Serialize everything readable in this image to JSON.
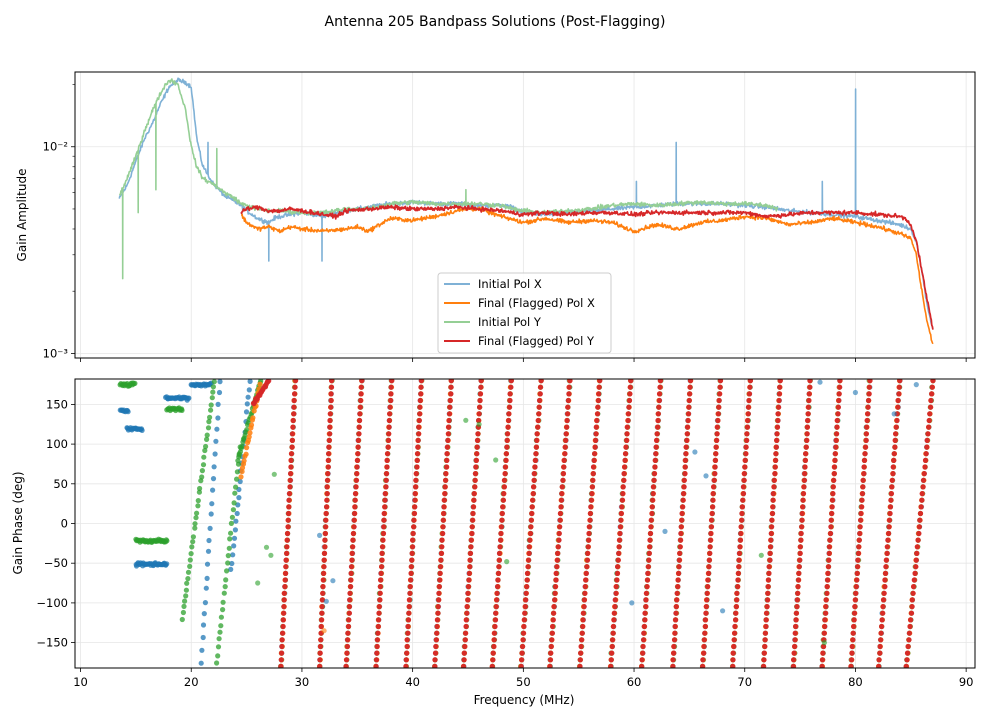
{
  "chart_data": [
    {
      "type": "line",
      "title": "Antenna 205 Bandpass Solutions (Post-Flagging)",
      "xlabel": "Frequency (MHz)",
      "ylabel": "Gain Amplitude",
      "yscale": "log",
      "xlim": [
        9.5,
        90.8
      ],
      "ylim": [
        0.00095,
        0.023
      ],
      "grid": true,
      "legend_position": "lower-center",
      "y_ticks": [
        {
          "value": 0.01,
          "label": "10⁻²"
        },
        {
          "value": 0.001,
          "label": "10⁻³"
        }
      ],
      "series": [
        {
          "name": "Initial Pol X",
          "color": "#7fb1d6",
          "x": [
            13.5,
            14.2,
            15.0,
            15.8,
            16.5,
            17.2,
            18.0,
            18.8,
            19.5,
            20.0,
            20.5,
            21.0,
            21.5,
            22.0,
            22.5,
            23.0,
            23.5,
            24.0,
            24.5,
            25.0,
            25.5,
            26.0,
            26.5,
            27.0,
            27.5,
            28.0,
            29.0,
            30.0,
            31.0,
            32.0,
            33.0,
            34.0,
            36.0,
            38.0,
            40.0,
            42.0,
            44.0,
            46.0,
            48.0,
            49.0,
            50.0,
            52.0,
            54.0,
            56.0,
            58.0,
            60.0,
            62.0,
            64.0,
            66.0,
            68.0,
            70.0,
            72.0,
            74.0,
            76.0,
            78.0,
            80.0,
            82.0,
            84.0,
            85.0,
            85.5,
            86.0,
            86.5,
            87.0
          ],
          "values": [
            0.0056,
            0.0065,
            0.0085,
            0.011,
            0.013,
            0.016,
            0.0195,
            0.021,
            0.0205,
            0.0195,
            0.011,
            0.0082,
            0.0073,
            0.0066,
            0.0062,
            0.0058,
            0.0056,
            0.0054,
            0.0052,
            0.0049,
            0.0047,
            0.0045,
            0.0044,
            0.0043,
            0.0045,
            0.0046,
            0.0047,
            0.0048,
            0.0047,
            0.0046,
            0.0048,
            0.0049,
            0.0051,
            0.0053,
            0.0054,
            0.0053,
            0.0053,
            0.0052,
            0.0052,
            0.0051,
            0.0048,
            0.0047,
            0.0048,
            0.0049,
            0.005,
            0.0051,
            0.0052,
            0.0053,
            0.0053,
            0.0053,
            0.0052,
            0.0051,
            0.0049,
            0.0048,
            0.0047,
            0.0046,
            0.0044,
            0.0042,
            0.004,
            0.0035,
            0.0025,
            0.0017,
            0.0013
          ],
          "spikes": [
            {
              "x": 63.8,
              "value": 0.0105
            },
            {
              "x": 80.0,
              "value": 0.019
            },
            {
              "x": 77.0,
              "value": 0.0068
            },
            {
              "x": 60.2,
              "value": 0.0068
            },
            {
              "x": 21.5,
              "value": 0.0105
            },
            {
              "x": 27.0,
              "value": 0.0028
            },
            {
              "x": 31.8,
              "value": 0.0028
            }
          ]
        },
        {
          "name": "Final (Flagged) Pol X",
          "color": "#ff7f0e",
          "x": [
            24.5,
            25.0,
            26.0,
            27.0,
            28.0,
            29.0,
            30.0,
            32.0,
            34.0,
            35.0,
            36.0,
            37.0,
            38.0,
            40.0,
            42.0,
            44.0,
            45.0,
            46.0,
            48.0,
            50.0,
            52.0,
            54.0,
            56.0,
            58.0,
            60.0,
            62.0,
            64.0,
            66.0,
            68.0,
            70.0,
            72.0,
            74.0,
            76.0,
            78.0,
            80.0,
            82.0,
            84.0,
            85.0,
            85.5,
            86.0,
            86.5,
            87.0
          ],
          "values": [
            0.0047,
            0.0043,
            0.004,
            0.0041,
            0.0039,
            0.0041,
            0.004,
            0.0039,
            0.004,
            0.0041,
            0.0039,
            0.0042,
            0.0045,
            0.0044,
            0.0046,
            0.0049,
            0.005,
            0.005,
            0.0046,
            0.0043,
            0.0045,
            0.0043,
            0.0044,
            0.0043,
            0.0039,
            0.0042,
            0.004,
            0.0043,
            0.0044,
            0.0046,
            0.0045,
            0.0042,
            0.0043,
            0.0045,
            0.0043,
            0.0041,
            0.0038,
            0.0036,
            0.003,
            0.002,
            0.0014,
            0.0011
          ]
        },
        {
          "name": "Initial Pol Y",
          "color": "#95cf95",
          "x": [
            13.5,
            14.2,
            15.0,
            15.8,
            16.5,
            17.2,
            17.8,
            18.2,
            18.8,
            19.5,
            20.0,
            20.5,
            21.0,
            21.5,
            22.0,
            22.5,
            23.0,
            23.5,
            24.0,
            24.5,
            25.0,
            26.0,
            27.0,
            28.0,
            30.0,
            32.0,
            34.0,
            36.0,
            38.0,
            40.0,
            42.0,
            44.0,
            46.0,
            48.0,
            49.0,
            50.0,
            52.0,
            54.0,
            56.0,
            58.0,
            60.0,
            62.0,
            64.0,
            66.0,
            68.0,
            70.0,
            72.0,
            73.0
          ],
          "values": [
            0.0058,
            0.007,
            0.009,
            0.012,
            0.015,
            0.018,
            0.0205,
            0.021,
            0.02,
            0.015,
            0.01,
            0.008,
            0.0071,
            0.0068,
            0.0066,
            0.0063,
            0.006,
            0.0058,
            0.0056,
            0.0053,
            0.0052,
            0.005,
            0.0049,
            0.0049,
            0.0048,
            0.0048,
            0.005,
            0.005,
            0.0053,
            0.0054,
            0.0053,
            0.0053,
            0.0053,
            0.0052,
            0.005,
            0.0049,
            0.0048,
            0.0049,
            0.005,
            0.0052,
            0.0053,
            0.0052,
            0.0053,
            0.0054,
            0.0053,
            0.0053,
            0.0052,
            0.005
          ],
          "spikes": [
            {
              "x": 13.8,
              "value": 0.0023
            },
            {
              "x": 15.2,
              "value": 0.0048
            },
            {
              "x": 16.8,
              "value": 0.0062
            },
            {
              "x": 22.3,
              "value": 0.0098
            },
            {
              "x": 44.8,
              "value": 0.0062
            }
          ]
        },
        {
          "name": "Final (Flagged) Pol Y",
          "color": "#d62728",
          "x": [
            24.5,
            25.0,
            26.0,
            27.0,
            28.0,
            29.0,
            30.0,
            31.0,
            32.0,
            33.0,
            34.0,
            36.0,
            38.0,
            40.0,
            42.0,
            44.0,
            46.0,
            48.0,
            50.0,
            52.0,
            54.0,
            56.0,
            58.0,
            60.0,
            62.0,
            64.0,
            66.0,
            68.0,
            70.0,
            72.0,
            74.0,
            76.0,
            78.0,
            80.0,
            82.0,
            84.0,
            84.5,
            85.0,
            85.5,
            86.0,
            86.5,
            87.0
          ],
          "values": [
            0.0048,
            0.005,
            0.0051,
            0.0049,
            0.0049,
            0.005,
            0.0049,
            0.0048,
            0.0047,
            0.0046,
            0.0049,
            0.005,
            0.0051,
            0.005,
            0.005,
            0.0051,
            0.005,
            0.0049,
            0.0047,
            0.0048,
            0.0047,
            0.0048,
            0.0048,
            0.0047,
            0.0048,
            0.0048,
            0.0048,
            0.0048,
            0.0048,
            0.0046,
            0.0047,
            0.0048,
            0.0048,
            0.0048,
            0.0047,
            0.0046,
            0.0045,
            0.0042,
            0.0035,
            0.0025,
            0.0018,
            0.0013
          ]
        }
      ]
    },
    {
      "type": "scatter",
      "xlabel": "Frequency (MHz)",
      "ylabel": "Gain Phase (deg)",
      "xlim": [
        9.5,
        90.8
      ],
      "ylim": [
        -182,
        182
      ],
      "grid": true,
      "x_ticks": [
        10,
        20,
        30,
        40,
        50,
        60,
        70,
        80,
        90
      ],
      "y_ticks": [
        -150,
        -100,
        -50,
        0,
        50,
        100,
        150
      ],
      "phase_wrap_lines": {
        "description": "Phase wraps from -180 to +180 deg across each frequency segment",
        "segments": [
          {
            "x_start": 28.1,
            "x_end": 29.4
          },
          {
            "x_start": 31.6,
            "x_end": 32.7
          },
          {
            "x_start": 34.0,
            "x_end": 35.4
          },
          {
            "x_start": 36.7,
            "x_end": 38.1
          },
          {
            "x_start": 39.4,
            "x_end": 40.8
          },
          {
            "x_start": 42.0,
            "x_end": 43.5
          },
          {
            "x_start": 44.6,
            "x_end": 46.2
          },
          {
            "x_start": 47.2,
            "x_end": 48.9
          },
          {
            "x_start": 49.8,
            "x_end": 51.6
          },
          {
            "x_start": 52.4,
            "x_end": 54.2
          },
          {
            "x_start": 55.1,
            "x_end": 56.9
          },
          {
            "x_start": 57.9,
            "x_end": 59.7
          },
          {
            "x_start": 60.7,
            "x_end": 62.4
          },
          {
            "x_start": 63.5,
            "x_end": 65.1
          },
          {
            "x_start": 66.2,
            "x_end": 67.8
          },
          {
            "x_start": 68.9,
            "x_end": 70.5
          },
          {
            "x_start": 71.7,
            "x_end": 73.2
          },
          {
            "x_start": 74.4,
            "x_end": 75.9
          },
          {
            "x_start": 77.0,
            "x_end": 78.6
          },
          {
            "x_start": 79.6,
            "x_end": 81.3
          },
          {
            "x_start": 82.1,
            "x_end": 84.0
          },
          {
            "x_start": 84.6,
            "x_end": 87.0
          }
        ]
      },
      "early_segments": {
        "description": "Initial-solution phase clusters at low frequency",
        "pol_x": [
          {
            "x_start": 13.6,
            "x_end": 14.3,
            "value": 142
          },
          {
            "x_start": 14.2,
            "x_end": 15.6,
            "value": 119
          },
          {
            "x_start": 15.0,
            "x_end": 17.8,
            "value": -51
          },
          {
            "x_start": 17.7,
            "x_end": 19.8,
            "value": 158
          },
          {
            "x_start": 20.0,
            "x_end": 21.8,
            "value": 175
          },
          {
            "x_start": 20.9,
            "x_end": 22.6,
            "value": -175,
            "wrap_to": 180
          },
          {
            "x_start": 23.6,
            "x_end": 25.3,
            "value": -60,
            "wrap_to": 180
          }
        ],
        "pol_y": [
          {
            "x_start": 13.6,
            "x_end": 14.9,
            "value": 175
          },
          {
            "x_start": 15.0,
            "x_end": 17.8,
            "value": -22
          },
          {
            "x_start": 17.8,
            "x_end": 19.2,
            "value": 144
          },
          {
            "x_start": 19.2,
            "x_end": 22.1,
            "value": -120,
            "wrap_to": 180
          },
          {
            "x_start": 22.3,
            "x_end": 24.4,
            "value": -175,
            "wrap_to": 95
          },
          {
            "x_start": 24.2,
            "x_end": 26.3,
            "value": 80,
            "wrap_to": 180
          }
        ],
        "final_x": [
          {
            "x_start": 24.5,
            "x_end": 26.2,
            "value": 60,
            "wrap_to": 175
          }
        ],
        "final_y": [
          {
            "x_start": 25.6,
            "x_end": 27.0,
            "value": 150,
            "wrap_to": 180
          }
        ]
      },
      "series": [
        {
          "name": "Initial Pol X",
          "color": "#1f77b4"
        },
        {
          "name": "Final (Flagged) Pol X",
          "color": "#ff7f0e"
        },
        {
          "name": "Initial Pol Y",
          "color": "#2ca02c"
        },
        {
          "name": "Final (Flagged) Pol Y",
          "color": "#d62728"
        }
      ]
    }
  ],
  "figure": {
    "title": "Antenna 205 Bandpass Solutions (Post-Flagging)"
  },
  "legend": {
    "items": [
      {
        "label": "Initial Pol X",
        "color": "#7fb1d6"
      },
      {
        "label": "Final (Flagged) Pol X",
        "color": "#ff7f0e"
      },
      {
        "label": "Initial Pol Y",
        "color": "#95cf95"
      },
      {
        "label": "Final (Flagged) Pol Y",
        "color": "#d62728"
      }
    ]
  }
}
